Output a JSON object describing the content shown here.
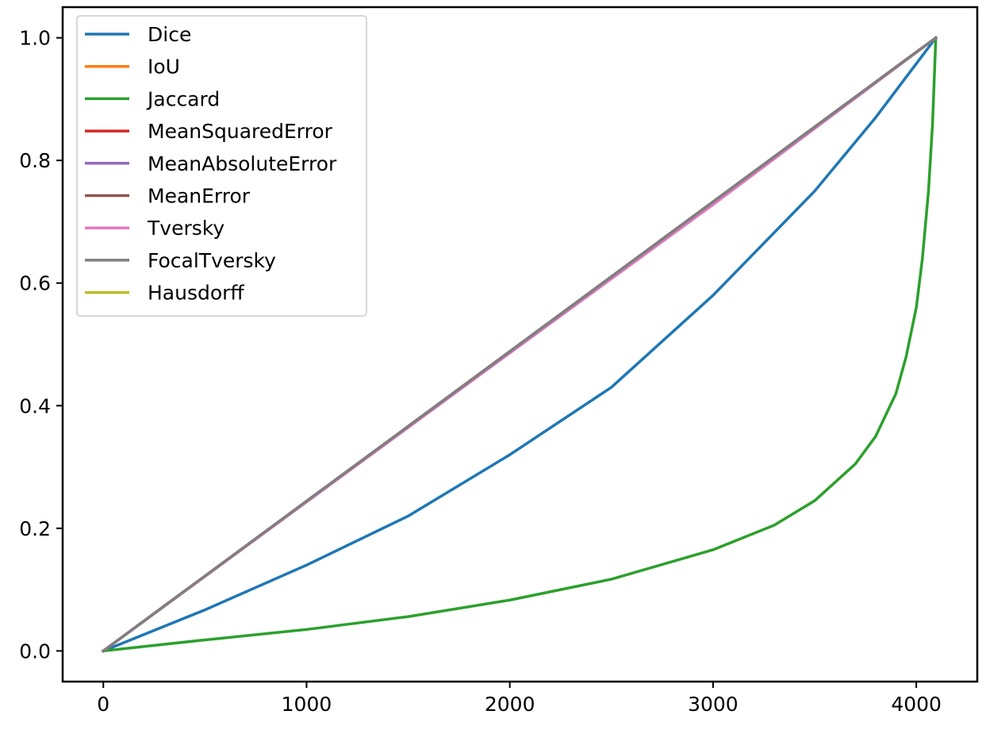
{
  "chart_data": {
    "type": "line",
    "title": "",
    "xlabel": "",
    "ylabel": "",
    "xlim": [
      -200,
      4300
    ],
    "ylim": [
      -0.05,
      1.05
    ],
    "xticks": [
      0,
      1000,
      2000,
      3000,
      4000
    ],
    "xtick_labels": [
      "0",
      "1000",
      "2000",
      "3000",
      "4000"
    ],
    "yticks": [
      0.0,
      0.2,
      0.4,
      0.6,
      0.8,
      1.0
    ],
    "ytick_labels": [
      "0.0",
      "0.2",
      "0.4",
      "0.6",
      "0.8",
      "1.0"
    ],
    "grid": false,
    "legend_position": "top-left",
    "series": [
      {
        "name": "Dice",
        "color": "#1f77b4",
        "x": [
          0,
          500,
          1000,
          1500,
          2000,
          2500,
          3000,
          3500,
          3800,
          4096
        ],
        "y": [
          0,
          0.067,
          0.14,
          0.22,
          0.32,
          0.43,
          0.58,
          0.75,
          0.87,
          1.0
        ]
      },
      {
        "name": "IoU",
        "color": "#ff7f0e",
        "x": [
          0,
          4096
        ],
        "y": [
          0,
          1.0
        ]
      },
      {
        "name": "Jaccard",
        "color": "#2ca02c",
        "x": [
          0,
          500,
          1000,
          1500,
          2000,
          2500,
          3000,
          3300,
          3500,
          3700,
          3800,
          3900,
          3950,
          4000,
          4030,
          4060,
          4080,
          4096
        ],
        "y": [
          0,
          0.018,
          0.035,
          0.056,
          0.083,
          0.117,
          0.165,
          0.205,
          0.245,
          0.305,
          0.35,
          0.42,
          0.48,
          0.56,
          0.64,
          0.75,
          0.86,
          1.0
        ]
      },
      {
        "name": "MeanSquaredError",
        "color": "#d62728",
        "x": [
          0,
          4096
        ],
        "y": [
          0,
          1.0
        ]
      },
      {
        "name": "MeanAbsoluteError",
        "color": "#9467bd",
        "x": [
          0,
          4096
        ],
        "y": [
          0,
          1.0
        ]
      },
      {
        "name": "MeanError",
        "color": "#8c564b",
        "x": [
          0,
          4096
        ],
        "y": [
          0,
          1.0
        ]
      },
      {
        "name": "Tversky",
        "color": "#e377c2",
        "x": [
          0,
          1000,
          2000,
          3000,
          4096
        ],
        "y": [
          0,
          0.243,
          0.486,
          0.728,
          1.0
        ]
      },
      {
        "name": "FocalTversky",
        "color": "#7f7f7f",
        "x": [
          0,
          4096
        ],
        "y": [
          0,
          1.0
        ]
      },
      {
        "name": "Hausdorff",
        "color": "#bcbd22",
        "x": [],
        "y": []
      }
    ]
  }
}
